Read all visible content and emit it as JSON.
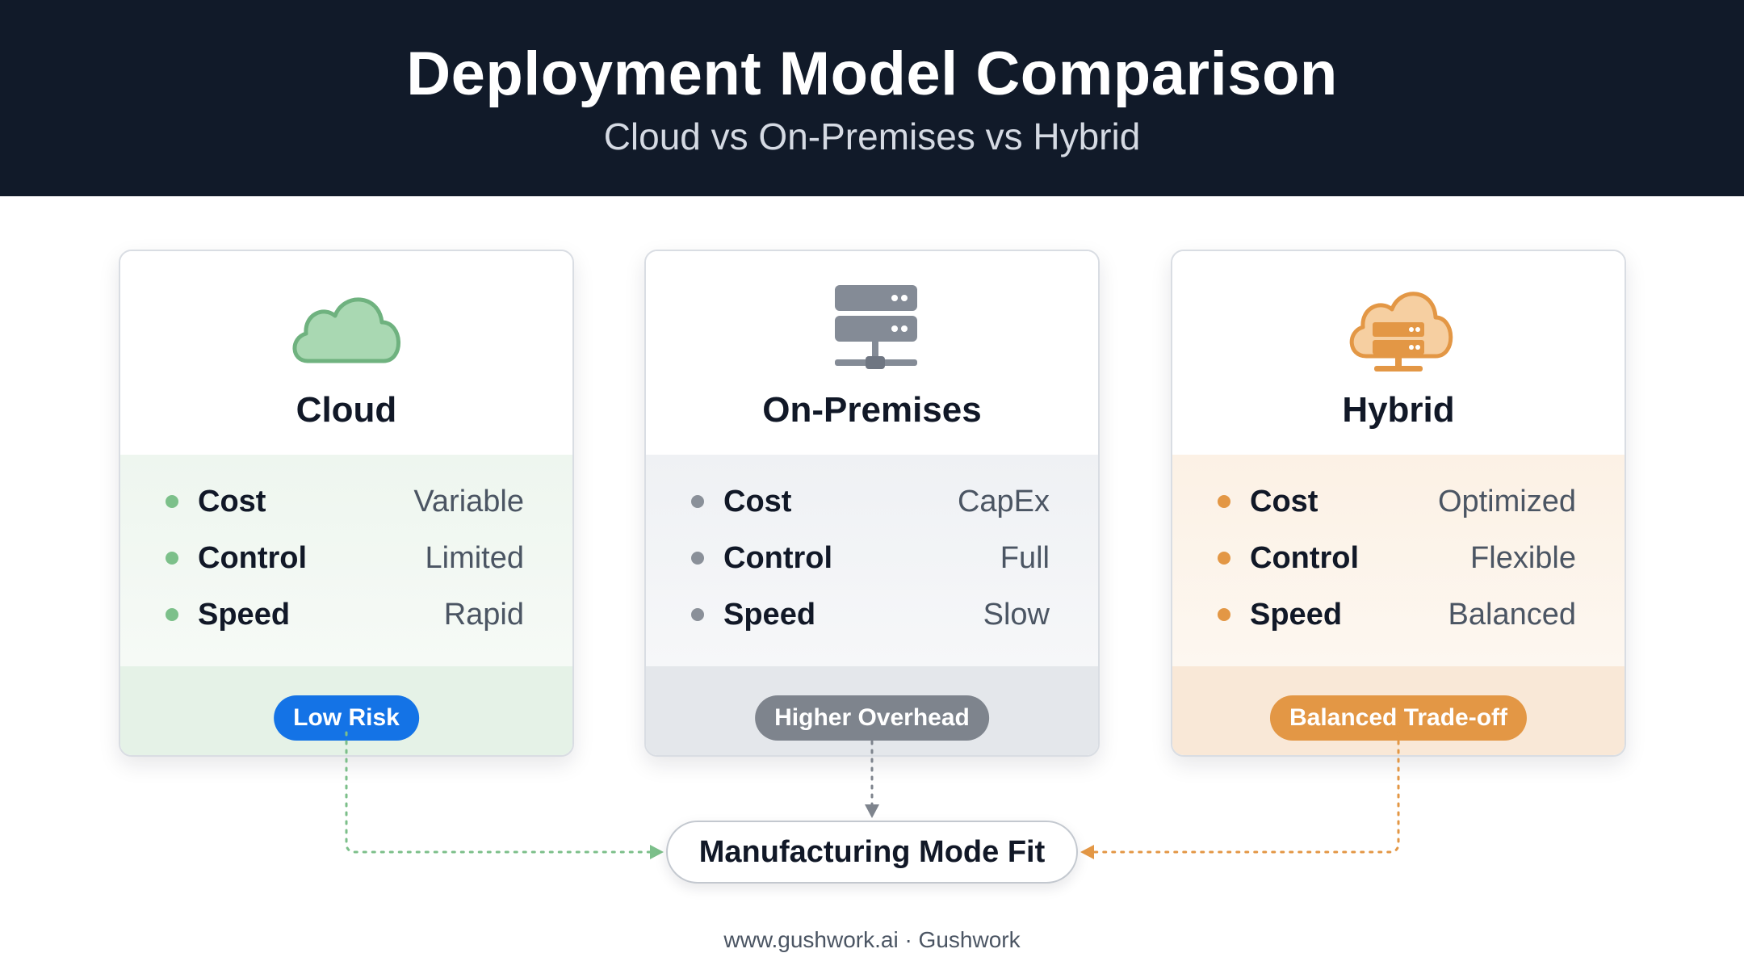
{
  "header": {
    "title": "Deployment Model Comparison",
    "subtitle": "Cloud vs On-Premises vs Hybrid"
  },
  "cards": [
    {
      "name": "Cloud",
      "icon": "cloud-icon",
      "accent": "#7cc08a",
      "metrics": [
        {
          "label": "Cost",
          "value": "Variable"
        },
        {
          "label": "Control",
          "value": "Limited"
        },
        {
          "label": "Speed",
          "value": "Rapid"
        }
      ],
      "badge": "Low Risk",
      "badge_color": "#1473e6"
    },
    {
      "name": "On-Premises",
      "icon": "server-rack-icon",
      "accent": "#7e848d",
      "metrics": [
        {
          "label": "Cost",
          "value": "CapEx"
        },
        {
          "label": "Control",
          "value": "Full"
        },
        {
          "label": "Speed",
          "value": "Slow"
        }
      ],
      "badge": "Higher Overhead",
      "badge_color": "#7e848d"
    },
    {
      "name": "Hybrid",
      "icon": "cloud-server-icon",
      "accent": "#e39745",
      "metrics": [
        {
          "label": "Cost",
          "value": "Optimized"
        },
        {
          "label": "Control",
          "value": "Flexible"
        },
        {
          "label": "Speed",
          "value": "Balanced"
        }
      ],
      "badge": "Balanced Trade-off",
      "badge_color": "#e39745"
    }
  ],
  "target": {
    "label": "Manufacturing Mode Fit"
  },
  "footer": {
    "text": "www.gushwork.ai · Gushwork"
  }
}
